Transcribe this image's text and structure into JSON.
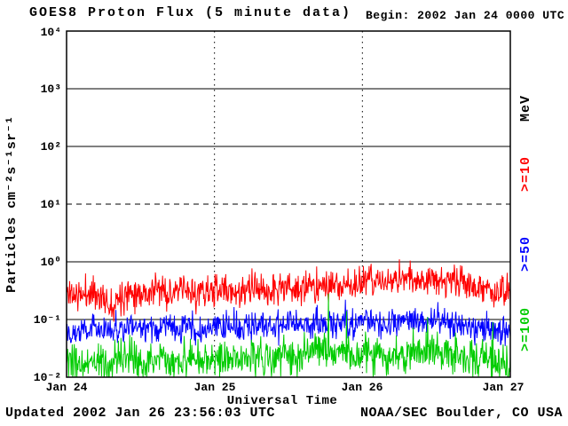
{
  "header": {
    "title": "GOES8 Proton Flux (5 minute data)",
    "begin_label": "Begin: 2002 Jan 24 0000 UTC"
  },
  "footer": {
    "updated": "Updated 2002 Jan 26 23:56:03 UTC",
    "credit": "NOAA/SEC Boulder, CO USA"
  },
  "chart_data": {
    "type": "line",
    "title": "GOES8 Proton Flux (5 minute data)",
    "instrument": "GOES8",
    "cadence": "5 minute data",
    "x_axis": {
      "label": "Universal Time",
      "tick_labels": [
        "Jan 24",
        "Jan 25",
        "Jan 26",
        "Jan 27"
      ],
      "start": "2002 Jan 24 0000 UTC",
      "end": "2002 Jan 27 0000 UTC",
      "hours_total": 72,
      "gridline_hours": [
        24,
        48
      ],
      "gridline_style": "dotted"
    },
    "y_axis": {
      "label": "Particles cm⁻²s⁻¹sr⁻¹",
      "scale": "log10",
      "min": 0.01,
      "max": 10000,
      "tick_labels": [
        "10⁴",
        "10³",
        "10²",
        "10¹",
        "10⁰",
        "10⁻¹",
        "10⁻²"
      ],
      "tick_values": [
        10000,
        1000,
        100,
        10,
        1,
        0.1,
        0.01
      ],
      "solid_gridline_values": [
        1000,
        100,
        1,
        0.1
      ],
      "dashed_gridline_values": [
        10
      ]
    },
    "right_labels": [
      {
        "text": "MeV",
        "color": "#000000"
      },
      {
        "text": ">=10",
        "color": "#ff0000"
      },
      {
        "text": ">=50",
        "color": "#0000ff"
      },
      {
        "text": ">=100",
        "color": "#00cc00"
      }
    ],
    "samples_per_hour": 12,
    "series": [
      {
        "name": ">=10",
        "units": "MeV",
        "color": "#ff0000",
        "approx_range": [
          0.1,
          1.1
        ],
        "noise_log10_sd": 0.14,
        "seed": 11,
        "hourly_median": [
          0.3,
          0.28,
          0.25,
          0.28,
          0.3,
          0.28,
          0.22,
          0.18,
          0.22,
          0.28,
          0.3,
          0.32,
          0.3,
          0.28,
          0.32,
          0.34,
          0.3,
          0.28,
          0.3,
          0.32,
          0.3,
          0.28,
          0.3,
          0.32,
          0.3,
          0.32,
          0.34,
          0.3,
          0.28,
          0.3,
          0.33,
          0.35,
          0.32,
          0.3,
          0.33,
          0.35,
          0.38,
          0.35,
          0.32,
          0.35,
          0.38,
          0.4,
          0.38,
          0.35,
          0.38,
          0.4,
          0.42,
          0.4,
          0.42,
          0.45,
          0.48,
          0.45,
          0.42,
          0.45,
          0.5,
          0.55,
          0.52,
          0.48,
          0.52,
          0.55,
          0.5,
          0.46,
          0.48,
          0.45,
          0.42,
          0.4,
          0.38,
          0.35,
          0.33,
          0.32,
          0.3,
          0.28
        ],
        "spikes": [
          {
            "hour": 47.5,
            "value": 0.85
          },
          {
            "hour": 55.75,
            "value": 1.05
          }
        ]
      },
      {
        "name": ">=50",
        "units": "MeV",
        "color": "#0000ff",
        "approx_range": [
          0.03,
          0.22
        ],
        "noise_log10_sd": 0.12,
        "seed": 22,
        "hourly_median": [
          0.07,
          0.065,
          0.06,
          0.068,
          0.075,
          0.07,
          0.065,
          0.06,
          0.065,
          0.07,
          0.072,
          0.075,
          0.07,
          0.065,
          0.07,
          0.075,
          0.07,
          0.068,
          0.065,
          0.07,
          0.075,
          0.07,
          0.065,
          0.07,
          0.072,
          0.075,
          0.08,
          0.075,
          0.07,
          0.075,
          0.08,
          0.08,
          0.075,
          0.072,
          0.075,
          0.08,
          0.085,
          0.08,
          0.075,
          0.08,
          0.085,
          0.09,
          0.085,
          0.08,
          0.085,
          0.09,
          0.09,
          0.085,
          0.09,
          0.09,
          0.095,
          0.09,
          0.085,
          0.09,
          0.095,
          0.1,
          0.095,
          0.09,
          0.095,
          0.1,
          0.095,
          0.09,
          0.09,
          0.085,
          0.08,
          0.08,
          0.075,
          0.075,
          0.07,
          0.07,
          0.065,
          0.065
        ],
        "spikes": [
          {
            "hour": 45.25,
            "value": 0.22
          },
          {
            "hour": 60.25,
            "value": 0.2
          }
        ]
      },
      {
        "name": ">=100",
        "units": "MeV",
        "color": "#00cc00",
        "approx_range": [
          0.01,
          0.3
        ],
        "noise_log10_sd": 0.16,
        "seed": 33,
        "hourly_median": [
          0.018,
          0.016,
          0.015,
          0.017,
          0.02,
          0.018,
          0.016,
          0.015,
          0.017,
          0.02,
          0.022,
          0.02,
          0.018,
          0.017,
          0.02,
          0.022,
          0.02,
          0.018,
          0.017,
          0.02,
          0.022,
          0.02,
          0.018,
          0.02,
          0.02,
          0.022,
          0.024,
          0.022,
          0.02,
          0.022,
          0.025,
          0.025,
          0.022,
          0.02,
          0.022,
          0.025,
          0.028,
          0.025,
          0.022,
          0.025,
          0.028,
          0.03,
          0.035,
          0.028,
          0.026,
          0.024,
          0.024,
          0.022,
          0.024,
          0.025,
          0.026,
          0.025,
          0.024,
          0.025,
          0.027,
          0.028,
          0.026,
          0.025,
          0.026,
          0.028,
          0.026,
          0.025,
          0.024,
          0.023,
          0.022,
          0.022,
          0.021,
          0.02,
          0.02,
          0.019,
          0.018,
          0.018
        ],
        "spikes": [
          {
            "hour": 42.5,
            "value": 0.28
          },
          {
            "hour": 45.4166,
            "value": 0.14
          },
          {
            "hour": 58.5833,
            "value": 0.11
          },
          {
            "hour": 69.1666,
            "value": 0.09
          }
        ]
      }
    ]
  }
}
